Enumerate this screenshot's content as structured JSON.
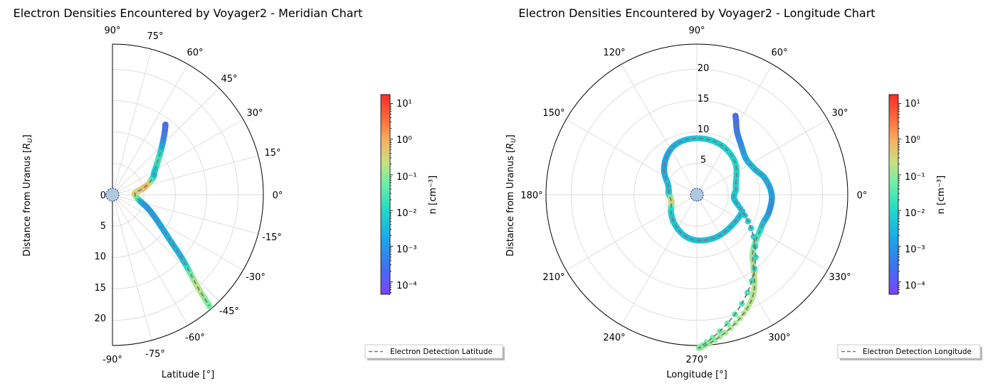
{
  "colors": {
    "colormap": [
      "#8040ff",
      "#4070f0",
      "#1aa8e8",
      "#22d8c8",
      "#6af0a8",
      "#c8e080",
      "#f8b060",
      "#ff6a3a",
      "#ff2a2a"
    ],
    "grid": "#dddddd",
    "trajectory_line": "#777777",
    "planet_fill": "#b0c8dc",
    "planet_edge": "#1a2a90"
  },
  "charts": [
    {
      "type": "polar-half",
      "title": "Electron Densities Encountered by Voyager2 - Meridian Chart",
      "xlabel": "Latitude [°]",
      "ylabel": "Distance from Uranus [R_U]",
      "angle_ticks": [
        "90°",
        "75°",
        "60°",
        "45°",
        "30°",
        "15°",
        "0°",
        "-15°",
        "-30°",
        "-45°",
        "-60°",
        "-75°",
        "-90°"
      ],
      "radial_ticks": [
        "0",
        "5",
        "10",
        "15",
        "20"
      ],
      "legend": "Electron Detection Latitude",
      "colorbar_label": "n [cm⁻³]",
      "colorbar_ticks": [
        "10¹",
        "10⁰",
        "10⁻¹",
        "10⁻²",
        "10⁻³",
        "10⁻⁴"
      ]
    },
    {
      "type": "polar-full",
      "title": "Electron Densities Encountered by Voyager2 - Longitude Chart",
      "xlabel": "Longitude [°]",
      "ylabel": "Distance from Uranus [R_U]",
      "angle_ticks": [
        "0°",
        "30°",
        "60°",
        "90°",
        "120°",
        "150°",
        "180°",
        "210°",
        "240°",
        "270°",
        "300°",
        "330°"
      ],
      "radial_ticks": [
        "5",
        "10",
        "15",
        "20"
      ],
      "legend": "Electron Detection Longitude",
      "colorbar_label": "n [cm⁻³]",
      "colorbar_ticks": [
        "10¹",
        "10⁰",
        "10⁻¹",
        "10⁻²",
        "10⁻³",
        "10⁻⁴"
      ]
    }
  ],
  "chart_data": [
    {
      "type": "scatter",
      "title": "Electron Densities Encountered by Voyager2 - Meridian Chart",
      "coordinate_system": "polar (latitude, radius)",
      "xlabel": "Latitude [°]",
      "ylabel": "Distance from Uranus [R_U]",
      "theta_range_deg": [
        -90,
        90
      ],
      "rlim": [
        0,
        24
      ],
      "grid": true,
      "legend_position": "below-right",
      "series": [
        {
          "name": "Electron Detection Latitude",
          "points": [
            {
              "lat": 53,
              "r": 14.0,
              "log_n": -3.8
            },
            {
              "lat": 46,
              "r": 11.5,
              "log_n": -3.2
            },
            {
              "lat": 38,
              "r": 9.3,
              "log_n": -2.0
            },
            {
              "lat": 30,
              "r": 7.8,
              "log_n": -2.3
            },
            {
              "lat": 23,
              "r": 7.0,
              "log_n": -2.6
            },
            {
              "lat": 14,
              "r": 5.4,
              "log_n": -0.3
            },
            {
              "lat": 6,
              "r": 3.8,
              "log_n": -0.8
            },
            {
              "lat": -1,
              "r": 3.6,
              "log_n": -0.5
            },
            {
              "lat": -10,
              "r": 4.2,
              "log_n": -1.6
            },
            {
              "lat": -17,
              "r": 5.2,
              "log_n": -3.0
            },
            {
              "lat": -30,
              "r": 8.2,
              "log_n": -3.0
            },
            {
              "lat": -38,
              "r": 11.5,
              "log_n": -2.8
            },
            {
              "lat": -43,
              "r": 15.5,
              "log_n": -2.6
            },
            {
              "lat": -47,
              "r": 19.5,
              "log_n": -1.0
            },
            {
              "lat": -49,
              "r": 23.5,
              "log_n": -1.5
            }
          ]
        }
      ]
    },
    {
      "type": "scatter",
      "title": "Electron Densities Encountered by Voyager2 - Longitude Chart",
      "coordinate_system": "polar (longitude, radius)",
      "xlabel": "Longitude [°]",
      "ylabel": "Distance from Uranus [R_U]",
      "theta_range_deg": [
        0,
        360
      ],
      "rlim": [
        0,
        24
      ],
      "grid": true,
      "legend_position": "below-right",
      "series": [
        {
          "name": "Electron Detection Longitude",
          "points": [
            {
              "lon": 64,
              "r": 14.0,
              "log_n": -3.8
            },
            {
              "lon": 56,
              "r": 11.6,
              "log_n": -3.5
            },
            {
              "lon": 39,
              "r": 9.8,
              "log_n": -3.0
            },
            {
              "lon": 25,
              "r": 10.0,
              "log_n": -2.7
            },
            {
              "lon": 14,
              "r": 11.1,
              "log_n": -2.8
            },
            {
              "lon": 0,
              "r": 11.9,
              "log_n": -3.0
            },
            {
              "lon": -13,
              "r": 11.8,
              "log_n": -3.2
            },
            {
              "lon": -28,
              "r": 11.5,
              "log_n": -2.4
            },
            {
              "lon": -47,
              "r": 13.0,
              "log_n": -1.2
            },
            {
              "lon": -63,
              "r": 19.0,
              "log_n": -1.0
            },
            {
              "lon": -88,
              "r": 24.0,
              "log_n": -1.4
            },
            {
              "lon": -20,
              "r": 7.7,
              "log_n": -2.6
            },
            {
              "lon": 10,
              "r": 6.3,
              "log_n": -2.4
            },
            {
              "lon": 41,
              "r": 8.0,
              "log_n": -2.3
            },
            {
              "lon": 64,
              "r": 8.8,
              "log_n": -2.4
            },
            {
              "lon": 90,
              "r": 9.0,
              "log_n": -2.5
            },
            {
              "lon": 115,
              "r": 8.6,
              "log_n": -2.8
            },
            {
              "lon": 140,
              "r": 6.8,
              "log_n": -3.0
            },
            {
              "lon": 160,
              "r": 4.9,
              "log_n": -2.6
            },
            {
              "lon": 180,
              "r": 4.4,
              "log_n": -2.5
            },
            {
              "lon": 196,
              "r": 4.2,
              "log_n": -0.5
            },
            {
              "lon": 213,
              "r": 4.9,
              "log_n": -2.2
            },
            {
              "lon": 236,
              "r": 6.0,
              "log_n": -2.5
            },
            {
              "lon": 262,
              "r": 7.1,
              "log_n": -2.6
            },
            {
              "lon": 290,
              "r": 7.4,
              "log_n": -2.6
            },
            {
              "lon": 318,
              "r": 7.4,
              "log_n": -2.6
            },
            {
              "lon": 340,
              "r": 7.7,
              "log_n": -2.6
            }
          ]
        }
      ]
    }
  ]
}
